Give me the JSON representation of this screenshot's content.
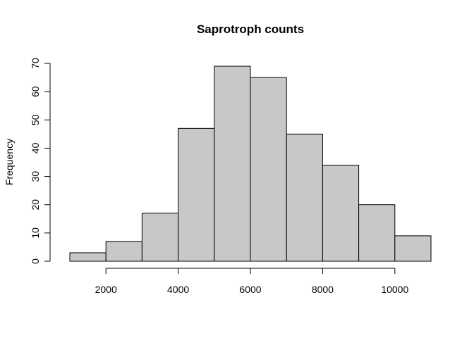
{
  "chart_data": {
    "type": "bar",
    "subtype": "histogram",
    "title": "Saprotroph counts",
    "xlabel": "",
    "ylabel": "Frequency",
    "bins": [
      {
        "start": 1000,
        "end": 2000,
        "count": 3
      },
      {
        "start": 2000,
        "end": 3000,
        "count": 7
      },
      {
        "start": 3000,
        "end": 4000,
        "count": 17
      },
      {
        "start": 4000,
        "end": 5000,
        "count": 47
      },
      {
        "start": 5000,
        "end": 6000,
        "count": 69
      },
      {
        "start": 6000,
        "end": 7000,
        "count": 65
      },
      {
        "start": 7000,
        "end": 8000,
        "count": 45
      },
      {
        "start": 8000,
        "end": 9000,
        "count": 34
      },
      {
        "start": 9000,
        "end": 10000,
        "count": 20
      },
      {
        "start": 10000,
        "end": 11000,
        "count": 9
      }
    ],
    "xlim": [
      1000,
      11000
    ],
    "ylim": [
      0,
      70
    ],
    "xticks": [
      2000,
      4000,
      6000,
      8000,
      10000
    ],
    "yticks": [
      0,
      10,
      20,
      30,
      40,
      50,
      60,
      70
    ],
    "bar_color": "#c8c8c8",
    "edge_color": "#000000",
    "grid": false,
    "legend": "none"
  }
}
